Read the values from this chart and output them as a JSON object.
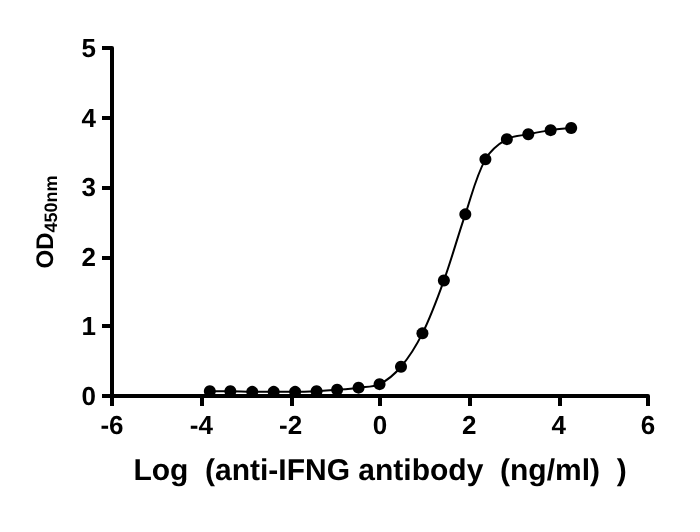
{
  "chart_data": {
    "type": "line",
    "xlabel": "Log  (anti-IFNG antibody  (ng/ml)  )",
    "ylabel": "OD$_{450nm}$",
    "x": [
      -3.81,
      -3.35,
      -2.86,
      -2.38,
      -1.9,
      -1.42,
      -0.96,
      -0.48,
      -0.01,
      0.47,
      0.95,
      1.43,
      1.91,
      2.36,
      2.84,
      3.32,
      3.82,
      4.28
    ],
    "series": [
      {
        "color": "#000000",
        "values": [
          0.07,
          0.07,
          0.06,
          0.06,
          0.06,
          0.07,
          0.09,
          0.12,
          0.17,
          0.42,
          0.9,
          1.66,
          2.61,
          3.4,
          3.69,
          3.76,
          3.82,
          3.85
        ]
      }
    ],
    "xlim": [
      -6,
      6
    ],
    "xticks": [
      -6,
      -4,
      -2,
      0,
      2,
      4,
      6
    ],
    "ylim": [
      0,
      5
    ],
    "yticks": [
      0,
      1,
      2,
      3,
      4,
      5
    ],
    "grid": false,
    "marker": "circle",
    "line_style": "solid"
  }
}
